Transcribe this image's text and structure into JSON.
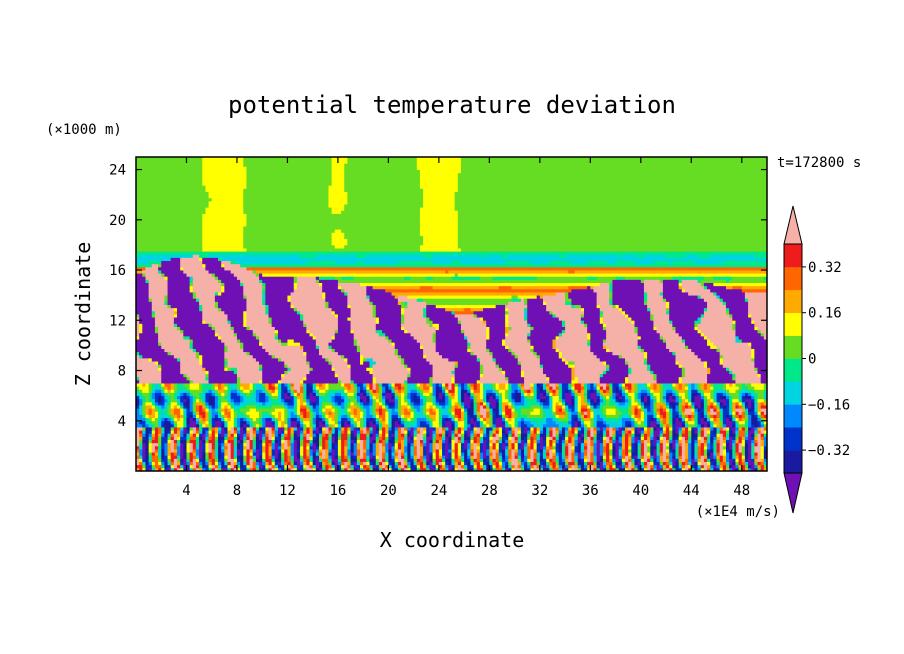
{
  "chart_data": {
    "type": "heatmap",
    "title": "potential temperature deviation",
    "xlabel": "X coordinate",
    "ylabel": "Z coordinate",
    "x_units": "(×1E4 m/s)",
    "y_units": "(×1000 m)",
    "time_label": "t=172800 s",
    "xlim": [
      0,
      50
    ],
    "ylim": [
      0,
      25
    ],
    "x_ticks": [
      4,
      8,
      12,
      16,
      20,
      24,
      28,
      32,
      36,
      40,
      44,
      48
    ],
    "y_ticks": [
      4,
      8,
      12,
      16,
      20,
      24
    ],
    "colorbar": {
      "levels": [
        -0.4,
        -0.32,
        -0.24,
        -0.16,
        -0.08,
        0,
        0.08,
        0.16,
        0.24,
        0.32,
        0.4
      ],
      "tick_labels": [
        "0.32",
        "0.16",
        "0",
        "−0.16",
        "−0.32"
      ],
      "tick_values": [
        0.32,
        0.16,
        0,
        -0.16,
        -0.32
      ],
      "colors": [
        "#1a1aa0",
        "#0033cc",
        "#0088ff",
        "#00d4e0",
        "#00e888",
        "#66dd22",
        "#ffff00",
        "#ffaa00",
        "#ff6600",
        "#ee1c1c"
      ],
      "under_color": "#6e10b4",
      "over_color": "#f5b0a8",
      "extend": "both"
    },
    "layers": [
      {
        "z": [
          0,
          3.5
        ],
        "description_pattern": "oscillating",
        "values": [
          -0.4,
          0.4
        ]
      },
      {
        "z": [
          3.5,
          7
        ],
        "values": [
          -0.36,
          -0.2,
          0.4
        ]
      },
      {
        "z": [
          7,
          13
        ],
        "values": [
          -0.45,
          0.45
        ]
      },
      {
        "z": [
          13,
          16.2
        ],
        "values": [
          0.18,
          0.3
        ]
      },
      {
        "z": [
          16.2,
          17.6
        ],
        "values": [
          -0.1,
          0.02
        ]
      },
      {
        "z": [
          17.6,
          25
        ],
        "values": [
          0.02,
          0.12
        ]
      }
    ]
  }
}
